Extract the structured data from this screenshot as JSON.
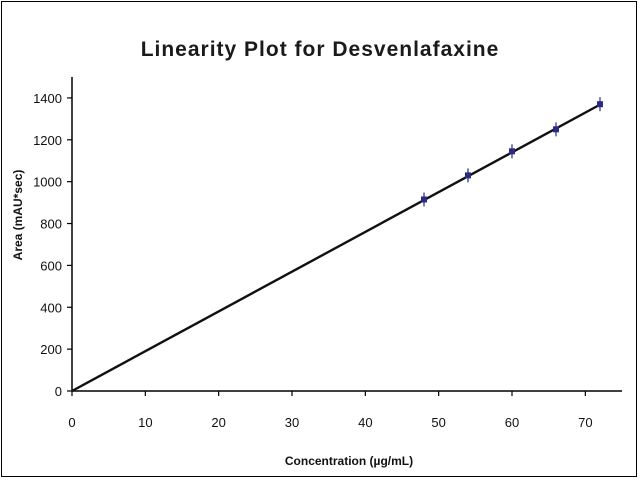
{
  "chart_data": {
    "type": "scatter",
    "title": "Linearity Plot for Desvenlafaxine",
    "xlabel": "Concentration (µg/mL)",
    "ylabel": "Area (mAU*sec)",
    "xlim": [
      0,
      75
    ],
    "ylim": [
      0,
      1500
    ],
    "xticks": [
      0,
      10,
      20,
      30,
      40,
      50,
      60,
      70
    ],
    "yticks": [
      0,
      200,
      400,
      600,
      800,
      1000,
      1200,
      1400
    ],
    "x": [
      48,
      54,
      60,
      66,
      72
    ],
    "y": [
      915,
      1030,
      1145,
      1250,
      1370
    ],
    "trendline": {
      "type": "linear",
      "x": [
        0,
        72
      ],
      "y": [
        0,
        1368
      ]
    },
    "grid": false,
    "legend": "none",
    "colors": {
      "points": "#2a2a80",
      "line": "#111111"
    }
  }
}
